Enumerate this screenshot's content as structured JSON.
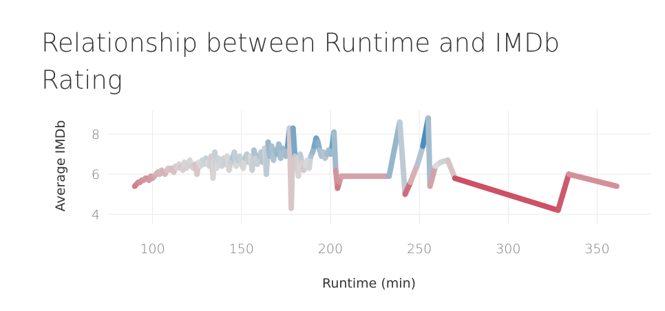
{
  "chart_data": {
    "type": "line",
    "title": "Relationship between Runtime and IMDb Rating",
    "xlabel": "Runtime (min)",
    "ylabel": "Average IMDb",
    "xlim": [
      75,
      380
    ],
    "ylim": [
      3.5,
      9.2
    ],
    "xticks": [
      100,
      150,
      200,
      250,
      300,
      350
    ],
    "yticks": [
      4,
      6,
      8
    ],
    "grid": true,
    "color_scale": {
      "low": "#c8102e",
      "mid": "#d9d9d9",
      "high": "#1f77b4",
      "midpoint": 6.5
    },
    "series": [
      {
        "x": [
          90,
          91,
          92,
          93,
          94,
          95,
          96,
          97,
          98,
          99,
          100,
          101,
          102,
          103,
          104,
          105,
          106,
          107,
          108,
          109,
          110,
          111,
          112,
          113,
          114,
          115,
          116,
          117,
          118,
          119,
          120,
          121,
          122,
          123,
          124,
          125,
          126,
          127,
          128,
          129,
          130,
          131,
          132,
          133,
          134,
          135,
          136,
          137,
          138,
          139,
          140,
          141,
          142,
          143,
          144,
          145,
          146,
          147,
          148,
          149,
          150,
          151,
          152,
          153,
          154,
          155,
          156,
          157,
          158,
          159,
          160,
          161,
          162,
          163,
          164,
          165,
          166,
          167,
          168,
          169,
          170,
          171,
          172,
          173,
          174,
          175,
          176,
          177,
          178,
          179,
          180,
          181,
          182,
          183,
          184,
          185,
          186,
          187,
          188,
          189,
          190,
          191,
          192,
          193,
          194,
          195,
          196,
          197,
          198,
          199,
          200,
          201,
          202,
          203,
          204,
          205,
          206,
          207,
          208,
          209,
          210,
          212,
          214,
          216,
          218,
          220,
          222,
          224,
          227,
          230,
          233,
          239,
          242,
          245,
          249,
          252,
          255,
          256,
          259,
          262,
          266,
          270,
          328,
          334,
          361
        ],
        "y": [
          5.4,
          5.5,
          5.6,
          5.6,
          5.7,
          5.7,
          5.8,
          5.8,
          5.7,
          5.9,
          5.8,
          5.9,
          6.0,
          6.1,
          6.0,
          6.2,
          6.1,
          6.0,
          6.2,
          6.3,
          6.2,
          6.3,
          6.1,
          6.4,
          6.3,
          6.5,
          6.4,
          6.2,
          6.6,
          6.3,
          6.5,
          6.7,
          6.4,
          6.3,
          6.5,
          6.0,
          6.6,
          6.4,
          6.7,
          6.5,
          6.8,
          6.6,
          6.4,
          6.9,
          5.8,
          7.1,
          6.3,
          6.8,
          6.5,
          6.4,
          6.8,
          6.5,
          6.9,
          6.2,
          6.6,
          6.8,
          7.1,
          6.4,
          6.7,
          6.9,
          6.5,
          6.3,
          6.8,
          7.0,
          6.6,
          6.9,
          6.2,
          7.2,
          6.8,
          6.5,
          6.9,
          7.1,
          6.6,
          7.3,
          6.0,
          7.6,
          6.9,
          7.4,
          6.7,
          7.2,
          7.0,
          7.5,
          6.8,
          7.3,
          7.1,
          6.9,
          7.4,
          8.3,
          4.3,
          8.3,
          6.9,
          6.8,
          5.9,
          7.0,
          6.6,
          6.2,
          6.4,
          6.7,
          6.3,
          6.9,
          7.1,
          7.4,
          7.8,
          7.6,
          7.2,
          6.9,
          7.1,
          6.8,
          7.0,
          7.2,
          7.0,
          7.4,
          8.1,
          6.2,
          5.3,
          5.6,
          5.9,
          5.9,
          5.9,
          5.9,
          5.9,
          5.9,
          5.9,
          5.9,
          5.9,
          5.9,
          5.9,
          5.9,
          5.9,
          5.9,
          5.9,
          8.6,
          5.0,
          5.6,
          6.5,
          7.4,
          8.8,
          5.4,
          6.4,
          6.6,
          6.7,
          5.8,
          4.2,
          6.0,
          5.4
        ]
      }
    ]
  }
}
